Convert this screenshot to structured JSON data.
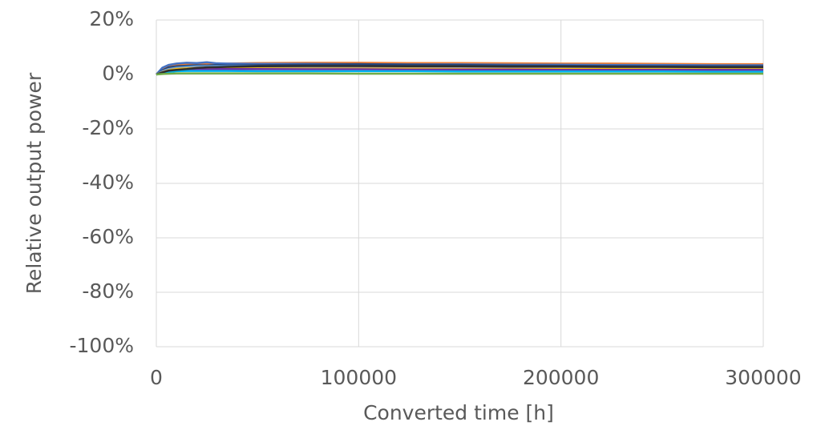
{
  "chart_data": {
    "type": "line",
    "x_label": "Converted time [h]",
    "y_label": "Relative output power",
    "x": [
      0,
      3000,
      6000,
      10000,
      15000,
      20000,
      25000,
      30000,
      35000,
      50000,
      75000,
      100000,
      125000,
      150000,
      175000,
      200000,
      225000,
      250000,
      275000,
      300000
    ],
    "series": [
      {
        "color": "#ed7d31",
        "values": [
          0,
          2,
          3.2,
          3.6,
          3.8,
          3.9,
          4,
          3.9,
          4,
          4.2,
          4.3,
          4.3,
          4.2,
          4.2,
          4.1,
          4,
          4,
          3.9,
          3.8,
          3.8
        ]
      },
      {
        "color": "#4472c4",
        "values": [
          0,
          2.5,
          3.5,
          4,
          4.3,
          4.2,
          4.5,
          4.1,
          4,
          3.9,
          3.9,
          3.8,
          3.7,
          3.7,
          3.6,
          3.6,
          3.5,
          3.5,
          3.4,
          3.4
        ]
      },
      {
        "color": "#264478",
        "values": [
          0,
          1.5,
          2.6,
          3,
          3.2,
          3.4,
          3.3,
          3.5,
          3.3,
          3.4,
          3.6,
          3.8,
          3.6,
          3.5,
          3.3,
          3.2,
          3.1,
          3,
          3,
          3
        ]
      },
      {
        "color": "#5b9bd5",
        "values": [
          0,
          1.2,
          2,
          2.5,
          2.8,
          3,
          3,
          3.1,
          3,
          3,
          3,
          2.9,
          2.9,
          2.8,
          2.8,
          2.7,
          2.7,
          2.6,
          2.6,
          2.6
        ]
      },
      {
        "color": "#a5a5a5",
        "values": [
          0,
          1,
          1.8,
          2.2,
          2.4,
          2.6,
          2.6,
          2.7,
          2.7,
          2.6,
          2.5,
          2.5,
          2.4,
          2.4,
          2.4,
          2.3,
          2.3,
          2.3,
          2.2,
          2.2
        ]
      },
      {
        "color": "#ffc000",
        "values": [
          0,
          0.8,
          1.5,
          2,
          2.2,
          2.3,
          2.3,
          2.3,
          2.2,
          2.2,
          2.1,
          2.1,
          2.1,
          2,
          2,
          2,
          2,
          1.9,
          1.9,
          1.9
        ]
      },
      {
        "color": "#7030a0",
        "values": [
          0,
          0.6,
          1.2,
          1.6,
          1.8,
          1.9,
          1.9,
          2,
          2,
          2,
          1.9,
          1.9,
          1.8,
          1.8,
          1.8,
          1.7,
          1.7,
          1.7,
          1.7,
          1.7
        ]
      },
      {
        "color": "#00b0f0",
        "values": [
          0,
          0.5,
          0.9,
          1.2,
          1.3,
          1.3,
          1.3,
          1.3,
          1.3,
          1.2,
          1.2,
          1.2,
          1.2,
          1.1,
          1.1,
          1.1,
          1.1,
          1.1,
          1,
          1
        ]
      },
      {
        "color": "#2e2e2e",
        "values": [
          0,
          0.8,
          1.4,
          1.7,
          2,
          2.4,
          2.6,
          2.7,
          2.8,
          3,
          3.1,
          3.1,
          3,
          3,
          2.9,
          2.9,
          2.8,
          2.8,
          2.7,
          2.7
        ]
      },
      {
        "color": "#70ad47",
        "values": [
          0,
          0.2,
          0.3,
          0.4,
          0.4,
          0.4,
          0.4,
          0.4,
          0.4,
          0.4,
          0.4,
          0.3,
          0.3,
          0.3,
          0.3,
          0.3,
          0.3,
          0.3,
          0.3,
          0.3
        ]
      }
    ],
    "xlim": [
      0,
      300000
    ],
    "xticks": [
      0,
      100000,
      200000,
      300000
    ],
    "ylim": [
      -100,
      20
    ],
    "yticks": [
      {
        "value": 20,
        "label": "20%"
      },
      {
        "value": 0,
        "label": "0%"
      },
      {
        "value": -20,
        "label": "-20%"
      },
      {
        "value": -40,
        "label": "-40%"
      },
      {
        "value": -60,
        "label": "-60%"
      },
      {
        "value": -80,
        "label": "-80%"
      },
      {
        "value": -100,
        "label": "-100%"
      }
    ],
    "grid": true
  }
}
